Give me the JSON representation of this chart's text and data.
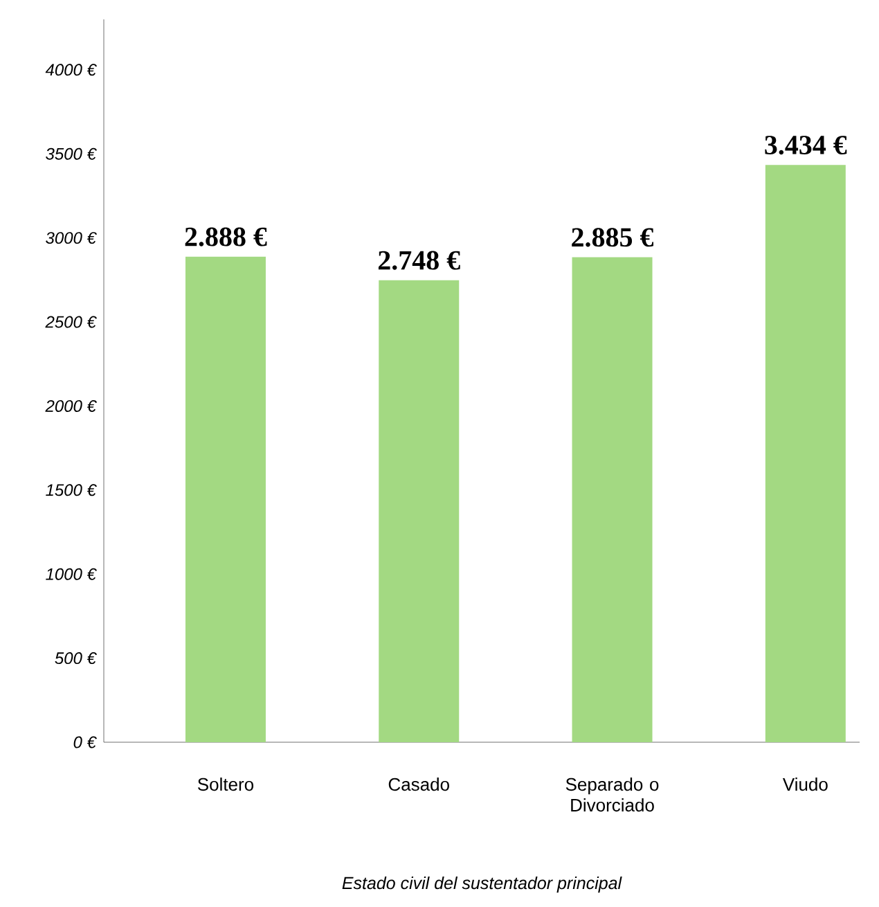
{
  "chart_data": {
    "type": "bar",
    "xlabel": "Estado civil del sustentador principal",
    "categories": [
      "Soltero",
      "Casado",
      "Separado o Divorciado",
      "Viudo"
    ],
    "values": [
      2888,
      2748,
      2885,
      3434
    ],
    "value_labels": [
      "2.888 €",
      "2.748 €",
      "2.885 €",
      "3.434 €"
    ],
    "color": "#a3d982",
    "ylim": [
      0,
      4300
    ],
    "yticks": [
      {
        "value": 0,
        "label": "0 €"
      },
      {
        "value": 500,
        "label": "500 €"
      },
      {
        "value": 1000,
        "label": "1000 €"
      },
      {
        "value": 1500,
        "label": "1500 €"
      },
      {
        "value": 2000,
        "label": "2000 €"
      },
      {
        "value": 2500,
        "label": "2500 €"
      },
      {
        "value": 3000,
        "label": "3000 €"
      },
      {
        "value": 3500,
        "label": "3500 €"
      },
      {
        "value": 4000,
        "label": "4000 €"
      }
    ],
    "grid": false
  }
}
